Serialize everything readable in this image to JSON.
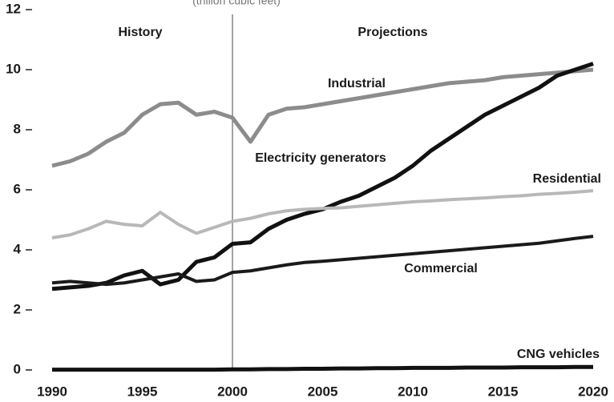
{
  "chart_data": {
    "type": "line",
    "subtitle": "(trillion cubic feet)",
    "annotations": [
      "History",
      "Projections"
    ],
    "x": [
      1990,
      1991,
      1992,
      1993,
      1994,
      1995,
      1996,
      1997,
      1998,
      1999,
      2000,
      2001,
      2002,
      2003,
      2004,
      2005,
      2006,
      2007,
      2008,
      2009,
      2010,
      2011,
      2012,
      2013,
      2014,
      2015,
      2016,
      2017,
      2018,
      2019,
      2020
    ],
    "xlim": [
      1990,
      2020
    ],
    "xticks": [
      1990,
      1995,
      2000,
      2005,
      2010,
      2015,
      2020
    ],
    "ylim": [
      0,
      12
    ],
    "yticks": [
      0,
      2,
      4,
      6,
      8,
      10,
      12
    ],
    "grid": false,
    "series": [
      {
        "name": "Industrial",
        "color": "#8c8c8c",
        "values": [
          6.8,
          6.95,
          7.2,
          7.6,
          7.9,
          8.5,
          8.85,
          8.9,
          8.5,
          8.6,
          8.4,
          7.6,
          8.5,
          8.7,
          8.75,
          8.85,
          8.95,
          9.05,
          9.15,
          9.25,
          9.35,
          9.45,
          9.55,
          9.6,
          9.65,
          9.75,
          9.8,
          9.85,
          9.9,
          9.95,
          10.0
        ]
      },
      {
        "name": "Electricity generators",
        "color": "#111111",
        "values": [
          2.7,
          2.75,
          2.8,
          2.9,
          3.15,
          3.3,
          2.85,
          3.0,
          3.6,
          3.75,
          4.2,
          4.25,
          4.7,
          5.0,
          5.2,
          5.35,
          5.6,
          5.8,
          6.1,
          6.4,
          6.8,
          7.3,
          7.7,
          8.1,
          8.5,
          8.8,
          9.1,
          9.4,
          9.8,
          10.0,
          10.2
        ]
      },
      {
        "name": "Residential",
        "color": "#b8b8b8",
        "values": [
          4.4,
          4.5,
          4.7,
          4.95,
          4.85,
          4.8,
          5.25,
          4.85,
          4.55,
          4.75,
          4.95,
          5.05,
          5.2,
          5.3,
          5.35,
          5.38,
          5.4,
          5.45,
          5.5,
          5.55,
          5.6,
          5.63,
          5.67,
          5.7,
          5.73,
          5.77,
          5.8,
          5.85,
          5.88,
          5.92,
          5.97
        ]
      },
      {
        "name": "Commercial",
        "color": "#1a1a1a",
        "values": [
          2.9,
          2.95,
          2.9,
          2.85,
          2.9,
          3.0,
          3.1,
          3.2,
          2.95,
          3.0,
          3.25,
          3.3,
          3.4,
          3.5,
          3.58,
          3.62,
          3.67,
          3.72,
          3.77,
          3.82,
          3.87,
          3.92,
          3.97,
          4.02,
          4.07,
          4.12,
          4.17,
          4.22,
          4.3,
          4.38,
          4.45
        ]
      },
      {
        "name": "CNG vehicles",
        "color": "#111111",
        "values": [
          0.01,
          0.01,
          0.01,
          0.01,
          0.01,
          0.01,
          0.01,
          0.01,
          0.01,
          0.01,
          0.02,
          0.02,
          0.03,
          0.03,
          0.04,
          0.04,
          0.05,
          0.05,
          0.06,
          0.06,
          0.07,
          0.07,
          0.07,
          0.08,
          0.08,
          0.08,
          0.09,
          0.09,
          0.09,
          0.1,
          0.1
        ]
      }
    ]
  }
}
